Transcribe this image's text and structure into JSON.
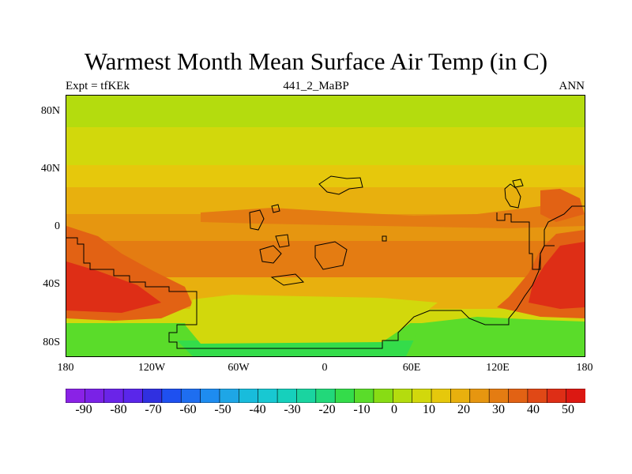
{
  "title": "Warmest Month Mean Surface Air Temp (in C)",
  "left_label": "Expt = tfKEk",
  "center_label": "441_2_MaBP",
  "right_label": "ANN",
  "lat_labels": [
    "80N",
    "40N",
    "0",
    "40S",
    "80S"
  ],
  "lon_labels": [
    "180",
    "120W",
    "60W",
    "0",
    "60E",
    "120E",
    "180"
  ],
  "colorbar": {
    "tick_labels": [
      "-90",
      "-80",
      "-70",
      "-60",
      "-50",
      "-40",
      "-30",
      "-20",
      "-10",
      "0",
      "10",
      "20",
      "30",
      "40",
      "50"
    ],
    "colors": [
      "#8a22e6",
      "#7a22e6",
      "#6a24e8",
      "#5a26ea",
      "#3030e0",
      "#1e50f0",
      "#1e6ef0",
      "#1e8cf0",
      "#1ea6e6",
      "#18bcdc",
      "#18c8d2",
      "#16d0bc",
      "#1ad4a0",
      "#22d87a",
      "#34dc4a",
      "#5adc2a",
      "#88dc14",
      "#b4dc0e",
      "#d2d80c",
      "#e6c80c",
      "#e8b00e",
      "#e69610",
      "#e47c12",
      "#e26214",
      "#e04816",
      "#de2e16",
      "#dc1812"
    ]
  },
  "map_colors": {
    "band_north_polar": "#b4dc0e",
    "band_north_mid": "#d2d80c",
    "band_north_subtrop": "#e6c80c",
    "band_tropics_n": "#e8b00e",
    "band_tropics": "#e69610",
    "band_south_warm": "#e47c12",
    "band_south_hot": "#e26214",
    "hotspot": "#de2e16",
    "band_south_yellow": "#d2d80c",
    "band_south_green": "#5adc2a",
    "band_south_polar": "#34dc4a",
    "coastline": "#000000"
  }
}
